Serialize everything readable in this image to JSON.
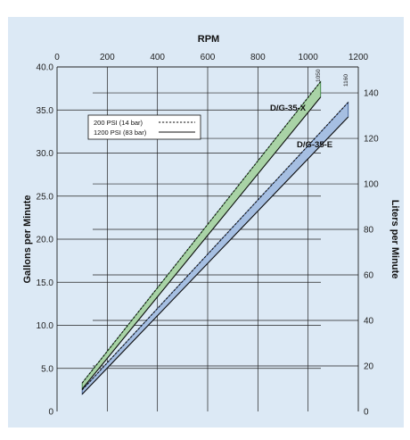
{
  "colors": {
    "background": "#dce9f5",
    "grid": "#222222",
    "x_band_fill": "#a9d3a6",
    "x_band_stroke": "#2e7a35",
    "e_band_fill": "#a6bfe2",
    "e_band_stroke": "#2f4f8a",
    "line": "#111111"
  },
  "chart_data": {
    "type": "line",
    "title": "",
    "x_axis_top": {
      "label": "RPM",
      "range": [
        0,
        1200
      ],
      "ticks": [
        "0",
        "200",
        "400",
        "600",
        "800",
        "1000",
        "1200"
      ]
    },
    "y_axis_left": {
      "label": "Gallons per Minute",
      "range": [
        0,
        40
      ],
      "ticks": [
        "0",
        "5.0",
        "10.0",
        "15.0",
        "20.0",
        "25.0",
        "30.0",
        "35.0",
        "40.0"
      ]
    },
    "y_axis_right": {
      "label": "Liters per Minute",
      "range": [
        0,
        151.4
      ],
      "ticks": [
        "0",
        "20",
        "40",
        "60",
        "80",
        "100",
        "120",
        "140"
      ]
    },
    "grid": true,
    "legend": {
      "position": "upper-left",
      "entries": [
        {
          "label": "200 PSI (14 bar)",
          "style": "dashed"
        },
        {
          "label": "1200 PSI (83 bar)",
          "style": "solid"
        }
      ]
    },
    "series": [
      {
        "name": "D/G-35-X",
        "max_rpm_label": "1050",
        "low_pressure": {
          "x": [
            100,
            1050
          ],
          "y": [
            3.3,
            38.3
          ]
        },
        "high_pressure": {
          "x": [
            100,
            1050
          ],
          "y": [
            2.6,
            36.5
          ]
        }
      },
      {
        "name": "D/G-35-E",
        "max_rpm_label": "1160",
        "low_pressure": {
          "x": [
            100,
            1160
          ],
          "y": [
            2.5,
            35.9
          ]
        },
        "high_pressure": {
          "x": [
            100,
            1160
          ],
          "y": [
            2.0,
            34.2
          ]
        }
      }
    ]
  }
}
